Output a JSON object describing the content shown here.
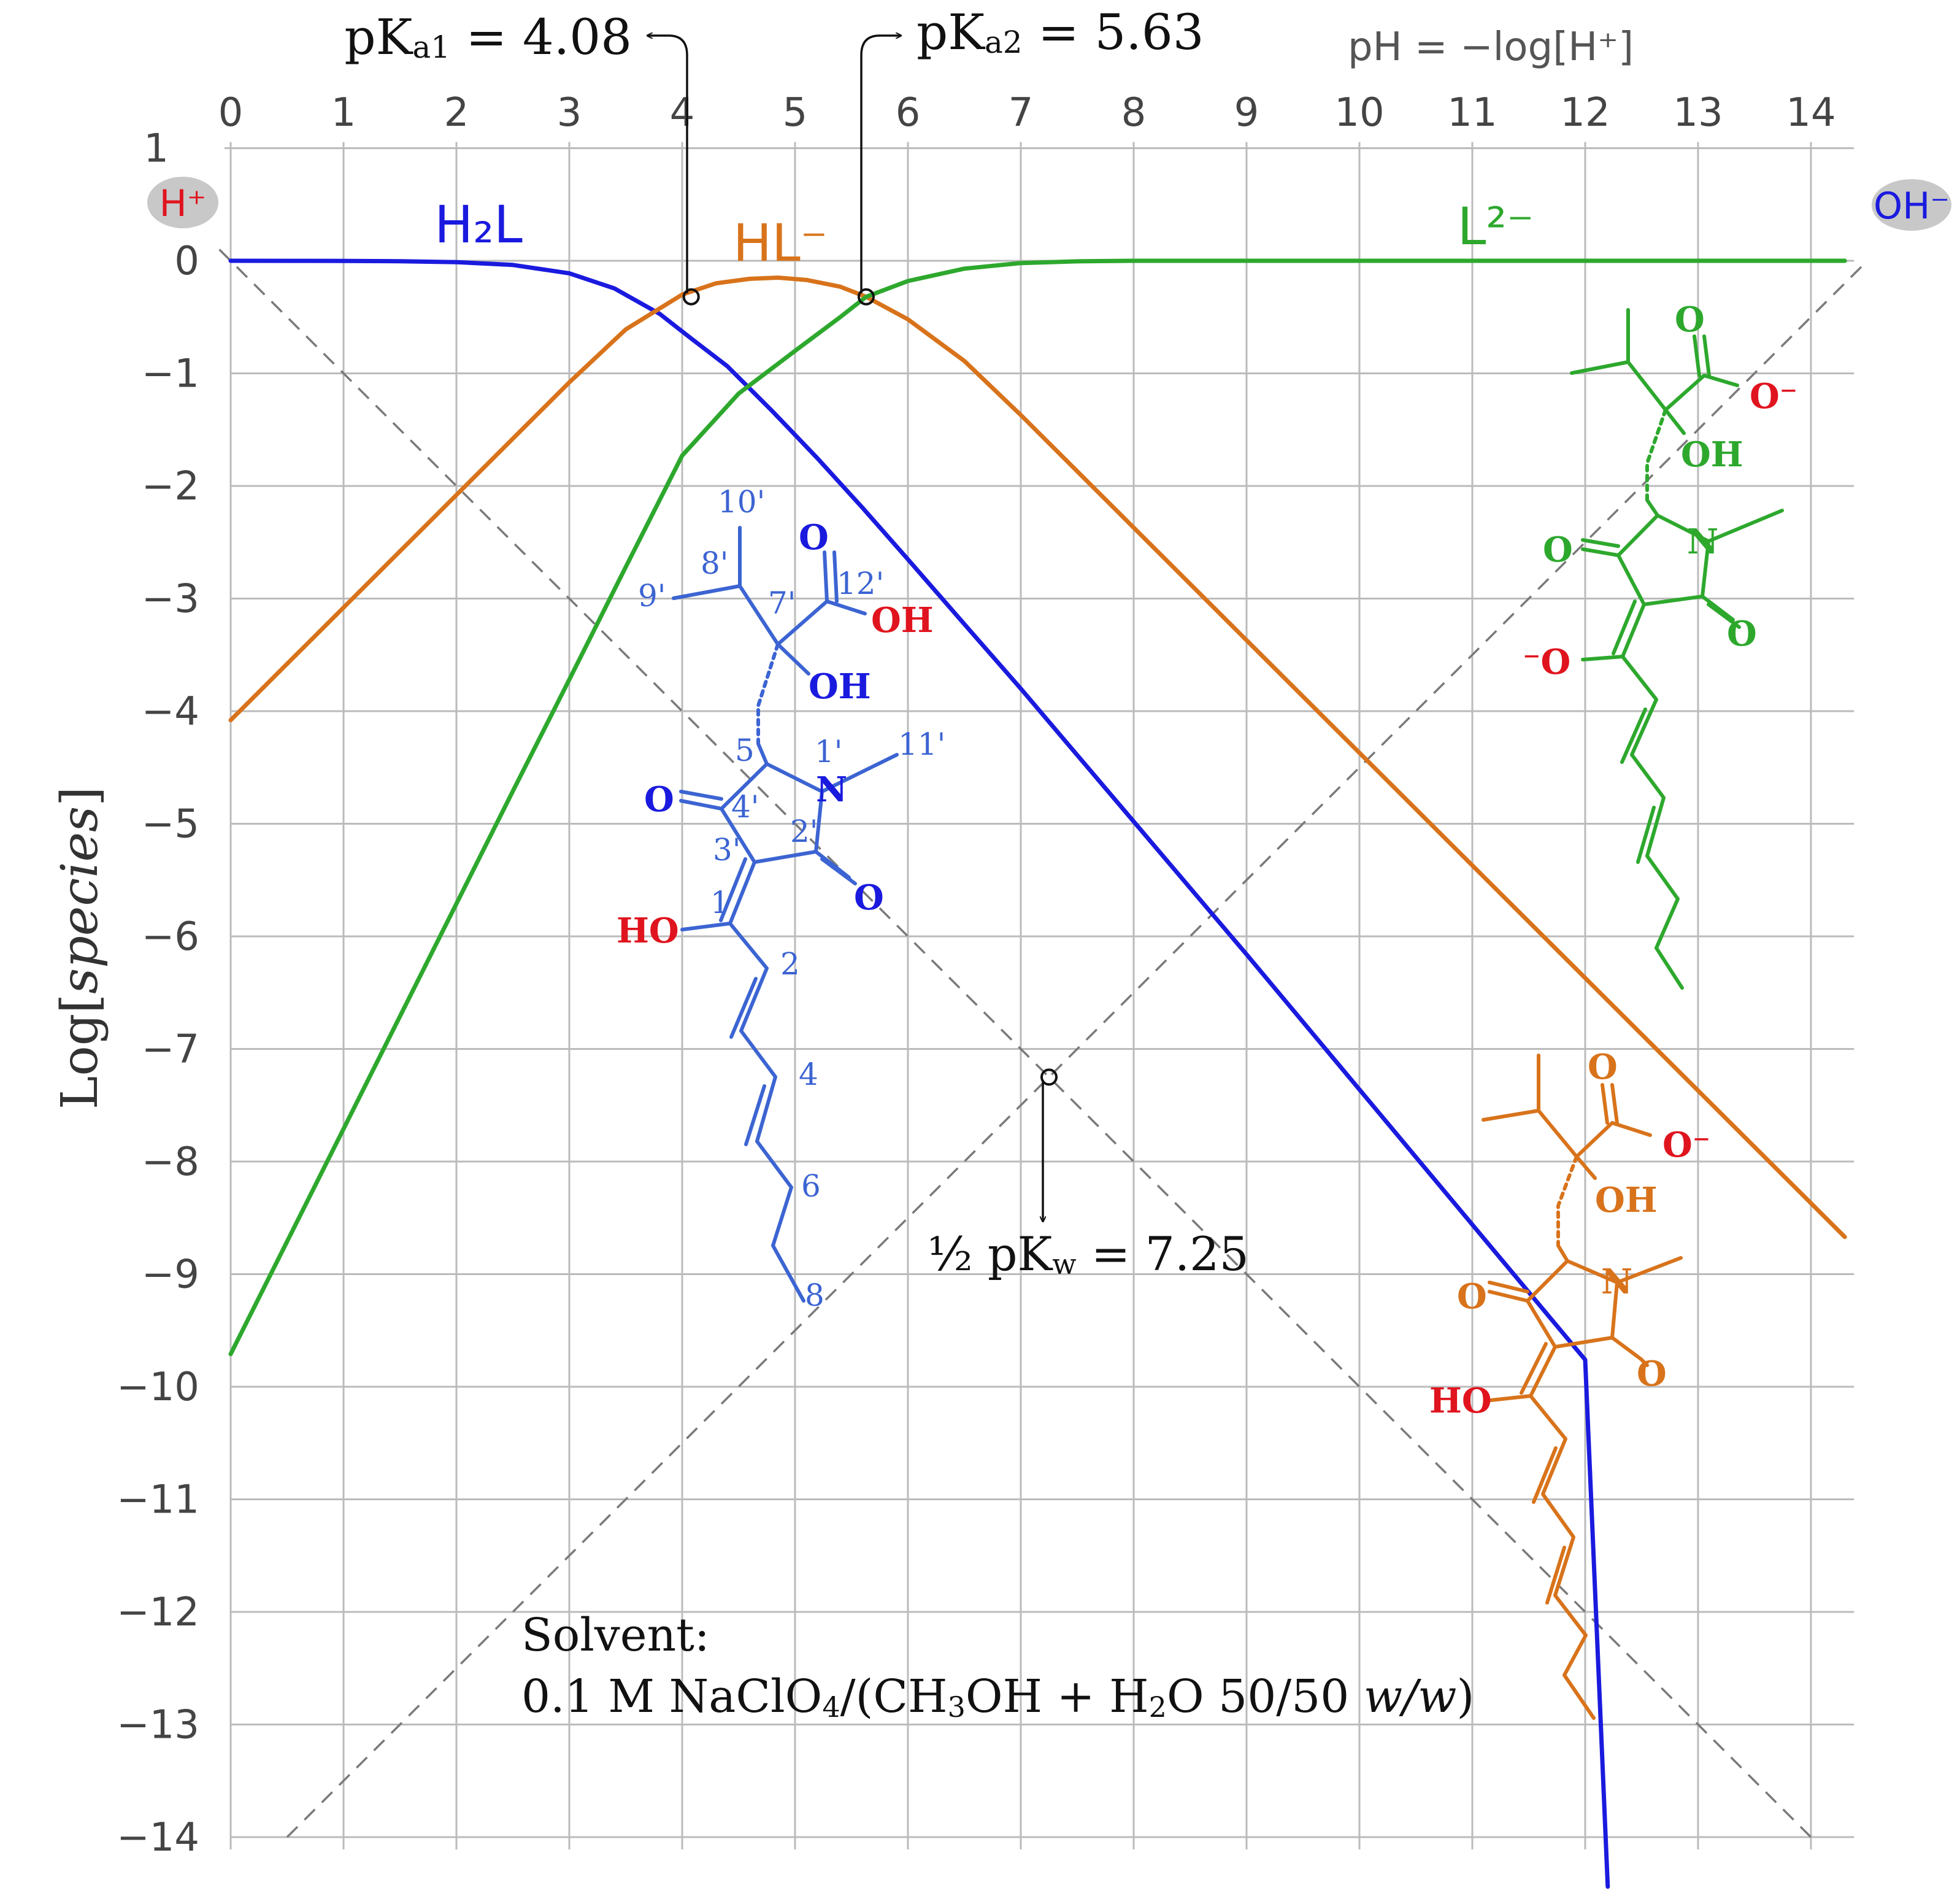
{
  "chart_data": {
    "type": "line",
    "xlabel": "pH = −log[H⁺]",
    "ylabel": "Log[species]",
    "xlim": [
      0,
      14.3
    ],
    "ylim": [
      -14,
      1
    ],
    "x_ticks": [
      "0",
      "1",
      "2",
      "3",
      "4",
      "5",
      "6",
      "7",
      "8",
      "9",
      "10",
      "11",
      "12",
      "13",
      "14"
    ],
    "y_ticks": [
      "1",
      "0",
      "−1",
      "−2",
      "−3",
      "−4",
      "−5",
      "−6",
      "−7",
      "−8",
      "−9",
      "−10",
      "−11",
      "−12",
      "−13",
      "−14"
    ],
    "grid": true,
    "colors": {
      "H2L": "#1a1adf",
      "HL": "#d8731b",
      "L": "#2da82d",
      "grid": "#bbbbbb",
      "dashed": "#7a7a7a",
      "red": "#e0141e",
      "struct_blue": "#3c64d2"
    },
    "pKa1": 4.08,
    "pKa2": 5.63,
    "half_pKw": 7.25,
    "series": [
      {
        "name": "H₂L",
        "color": "#1a1adf",
        "x": [
          0,
          0.5,
          1,
          1.5,
          2,
          2.5,
          3,
          3.4,
          3.8,
          4.08,
          4.4,
          4.8,
          5.2,
          5.6,
          6,
          6.5,
          7,
          7.5,
          8,
          8.5,
          9,
          9.5,
          10,
          10.5,
          11,
          11.5,
          12,
          12.2
        ],
        "values": [
          -0.0001,
          -0.0004,
          -0.0012,
          -0.004,
          -0.012,
          -0.037,
          -0.111,
          -0.246,
          -0.471,
          -0.69,
          -0.936,
          -1.337,
          -1.756,
          -2.196,
          -2.652,
          -3.227,
          -3.8,
          -4.39,
          -4.98,
          -5.57,
          -6.16,
          -6.76,
          -7.36,
          -7.96,
          -8.56,
          -9.16,
          -9.76,
          -14.44
        ]
      },
      {
        "name": "HL⁻",
        "color": "#d8731b",
        "x": [
          0,
          0.5,
          1,
          1.5,
          2,
          2.5,
          3,
          3.5,
          4,
          4.3,
          4.6,
          4.85,
          5.1,
          5.4,
          5.63,
          6,
          6.5,
          7,
          7.5,
          8,
          8.5,
          9,
          9.5,
          10,
          10.5,
          11,
          11.5,
          12,
          12.5,
          13,
          13.5,
          14,
          14.3
        ],
        "values": [
          -4.08,
          -3.58,
          -3.08,
          -2.58,
          -2.08,
          -1.58,
          -1.08,
          -0.61,
          -0.3,
          -0.2,
          -0.16,
          -0.15,
          -0.17,
          -0.23,
          -0.32,
          -0.52,
          -0.89,
          -1.37,
          -1.87,
          -2.37,
          -2.87,
          -3.37,
          -3.87,
          -4.37,
          -4.87,
          -5.37,
          -5.87,
          -6.37,
          -6.87,
          -7.37,
          -7.87,
          -8.37,
          -8.67
        ]
      },
      {
        "name": "L²⁻",
        "color": "#2da82d",
        "x": [
          0,
          0.5,
          1,
          1.5,
          2,
          2.5,
          3,
          3.5,
          4,
          4.5,
          5,
          5.4,
          5.63,
          6,
          6.5,
          7,
          7.5,
          8,
          9,
          10,
          11,
          12,
          13,
          14,
          14.3
        ],
        "values": [
          -9.71,
          -8.71,
          -7.71,
          -6.71,
          -5.71,
          -4.71,
          -3.72,
          -2.72,
          -1.73,
          -1.18,
          -0.8,
          -0.5,
          -0.32,
          -0.18,
          -0.07,
          -0.02,
          -0.005,
          0,
          0,
          0,
          0,
          0,
          0,
          0,
          0
        ]
      }
    ],
    "guide_lines": [
      {
        "name": "log[H+]",
        "from": [
          -0.1,
          0.1
        ],
        "to": [
          14,
          -14
        ]
      },
      {
        "name": "log[OH-]",
        "from": [
          0.5,
          -14
        ],
        "to": [
          14.5,
          0
        ]
      }
    ],
    "markers": [
      {
        "name": "pKa1",
        "x": 4.08,
        "y": -0.32
      },
      {
        "name": "pKa2",
        "x": 5.63,
        "y": -0.32
      },
      {
        "name": "half-pKw",
        "x": 7.25,
        "y": -7.25
      }
    ]
  },
  "annotations": {
    "pka1": {
      "prefix": "pK",
      "sub": "a1",
      "value": " = 4.08"
    },
    "pka2": {
      "prefix": "pK",
      "sub": "a2",
      "value": " = 5.63"
    },
    "pkw": {
      "prefix": "½ pK",
      "sub": "w",
      "value": " = 7.25"
    },
    "axis_title": "pH  =  −log[H⁺]",
    "ylabel_main": "Log[",
    "ylabel_italic": "species",
    "ylabel_end": "]",
    "h_badge": "H⁺",
    "oh_badge": "OH⁻",
    "species_h2l": "H₂L",
    "species_hl": "HL⁻",
    "species_l": "L²⁻",
    "solvent_title": "Solvent:",
    "solvent_prefix": "0.1 M NaClO",
    "solvent_sub4": "4",
    "solvent_mid1": "/(CH",
    "solvent_sub3": "3",
    "solvent_mid2": "OH + H",
    "solvent_sub2": "2",
    "solvent_mid3": "O 50/50 ",
    "solvent_italic": "w/w",
    "solvent_end": ")"
  },
  "structure_labels": {
    "blue": {
      "numbers": [
        "10'",
        "8'",
        "9'",
        "7'",
        "12'",
        "5'",
        "1'",
        "11'",
        "4'",
        "2'",
        "3'",
        "1",
        "2",
        "4",
        "6",
        "8"
      ],
      "atoms": [
        "O",
        "OH",
        "OH",
        "N",
        "O",
        "O",
        "HO"
      ]
    },
    "green": {
      "atoms": [
        "O",
        "O⁻",
        "OH",
        "N",
        "O",
        "O",
        "⁻O"
      ]
    },
    "orange": {
      "atoms": [
        "O",
        "O⁻",
        "OH",
        "O",
        "N",
        "O",
        "HO"
      ]
    }
  }
}
